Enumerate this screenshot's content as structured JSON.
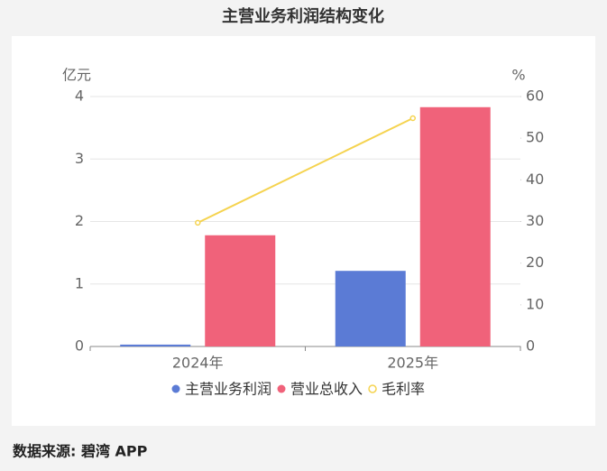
{
  "chart_data": {
    "type": "bar",
    "title": "主营业务利润结构变化",
    "source": "数据来源: 碧湾 APP",
    "y_label": "亿元",
    "y2_label": "%",
    "categories": [
      "2024年",
      "2025年"
    ],
    "series": [
      {
        "name": "主营业务利润",
        "color": "#5b7bd5",
        "type": "bar",
        "values": [
          0.03,
          1.21
        ]
      },
      {
        "name": "营业总收入",
        "color": "#f0627a",
        "type": "bar",
        "values": [
          1.78,
          3.83
        ]
      },
      {
        "name": "毛利率",
        "color": "#f5d34f",
        "type": "line",
        "axis": "y2",
        "values": [
          29.7,
          54.8
        ]
      }
    ],
    "ylim": [
      0,
      4
    ],
    "yticks": [
      0,
      1,
      2,
      3,
      4
    ],
    "y2lim": [
      0,
      60
    ],
    "y2ticks": [
      0,
      10,
      20,
      30,
      40,
      50,
      60
    ],
    "grid": true
  }
}
